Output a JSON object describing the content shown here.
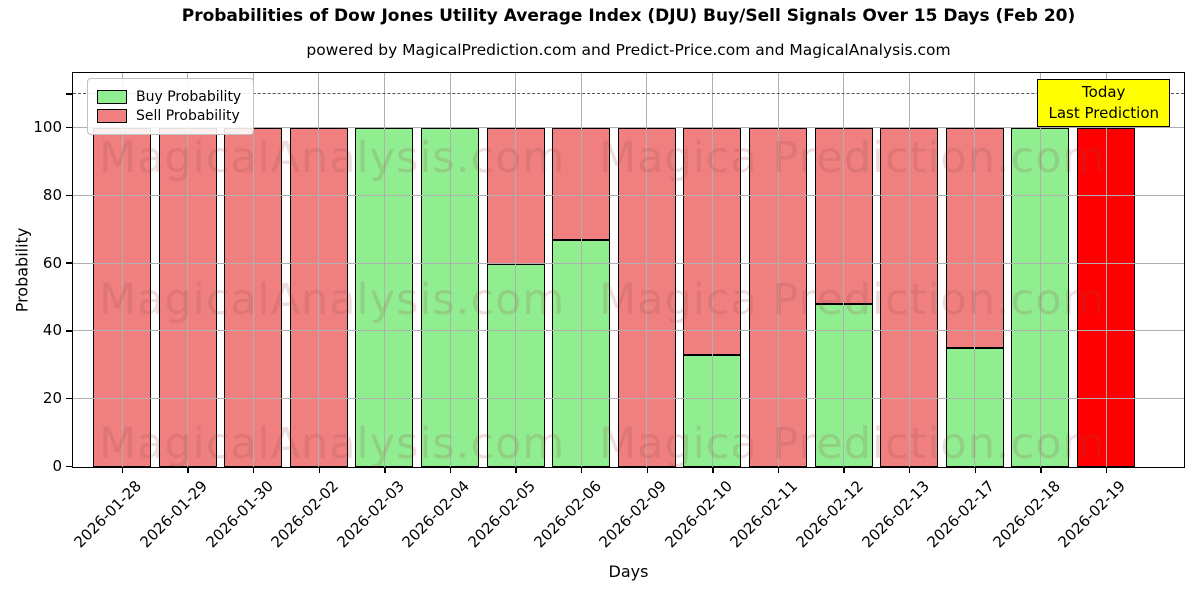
{
  "title": "Probabilities of Dow Jones Utility Average Index (DJU) Buy/Sell Signals Over 15 Days (Feb 20)",
  "subtitle": "powered by MagicalPrediction.com and Predict-Price.com and MagicalAnalysis.com",
  "legend": {
    "items": [
      {
        "label": "Buy Probability",
        "color": "#90ee90"
      },
      {
        "label": "Sell Probability",
        "color": "#f08080"
      }
    ]
  },
  "annotation": {
    "line1": "Today",
    "line2": "Last Prediction",
    "bg_color": "#ffff00"
  },
  "watermarks": {
    "color": "rgba(150,70,70,0.18)",
    "rows": [
      {
        "left": "MagicalAnalysis.com",
        "right": "Magica Prediction.com"
      },
      {
        "left": "MagicalAnalysis.com",
        "right": "Magica Prediction.com"
      },
      {
        "left": "MagicalAnalysis.com",
        "right": "Magica Prediction.com"
      }
    ]
  },
  "chart_data": {
    "type": "bar",
    "stacked": true,
    "title": "Probabilities of Dow Jones Utility Average Index (DJU) Buy/Sell Signals Over 15 Days (Feb 20)",
    "xlabel": "Days",
    "ylabel": "Probability",
    "yticks": [
      0,
      20,
      40,
      60,
      80,
      100
    ],
    "ylim": [
      0,
      116
    ],
    "dashed_threshold_y": 110,
    "grid": true,
    "legend_position": "upper-left",
    "buy_color": "#90ee90",
    "sell_color": "#f08080",
    "today_sell_color": "#ff0000",
    "categories": [
      "2026-01-28",
      "2026-01-29",
      "2026-01-30",
      "2026-02-02",
      "2026-02-03",
      "2026-02-04",
      "2026-02-05",
      "2026-02-06",
      "2026-02-09",
      "2026-02-10",
      "2026-02-11",
      "2026-02-12",
      "2026-02-13",
      "2026-02-17",
      "2026-02-18",
      "2026-02-19"
    ],
    "series": [
      {
        "name": "Buy Probability",
        "values": [
          0,
          0,
          0,
          0,
          100,
          100,
          60,
          67,
          0,
          33,
          0,
          48,
          0,
          35,
          100,
          0
        ]
      },
      {
        "name": "Sell Probability",
        "values": [
          100,
          100,
          100,
          100,
          0,
          0,
          40,
          33,
          100,
          67,
          100,
          52,
          100,
          65,
          0,
          100
        ]
      }
    ],
    "bars": [
      {
        "date": "2026-01-28",
        "buy": 0,
        "sell": 100
      },
      {
        "date": "2026-01-29",
        "buy": 0,
        "sell": 100
      },
      {
        "date": "2026-01-30",
        "buy": 0,
        "sell": 100
      },
      {
        "date": "2026-02-02",
        "buy": 0,
        "sell": 100
      },
      {
        "date": "2026-02-03",
        "buy": 100,
        "sell": 0
      },
      {
        "date": "2026-02-04",
        "buy": 100,
        "sell": 0
      },
      {
        "date": "2026-02-05",
        "buy": 60,
        "sell": 40
      },
      {
        "date": "2026-02-06",
        "buy": 67,
        "sell": 33
      },
      {
        "date": "2026-02-09",
        "buy": 0,
        "sell": 100
      },
      {
        "date": "2026-02-10",
        "buy": 33,
        "sell": 67
      },
      {
        "date": "2026-02-11",
        "buy": 0,
        "sell": 100
      },
      {
        "date": "2026-02-12",
        "buy": 48,
        "sell": 52
      },
      {
        "date": "2026-02-13",
        "buy": 0,
        "sell": 100
      },
      {
        "date": "2026-02-17",
        "buy": 35,
        "sell": 65
      },
      {
        "date": "2026-02-18",
        "buy": 100,
        "sell": 0
      },
      {
        "date": "2026-02-19",
        "buy": 0,
        "sell": 100,
        "today": true
      }
    ]
  }
}
